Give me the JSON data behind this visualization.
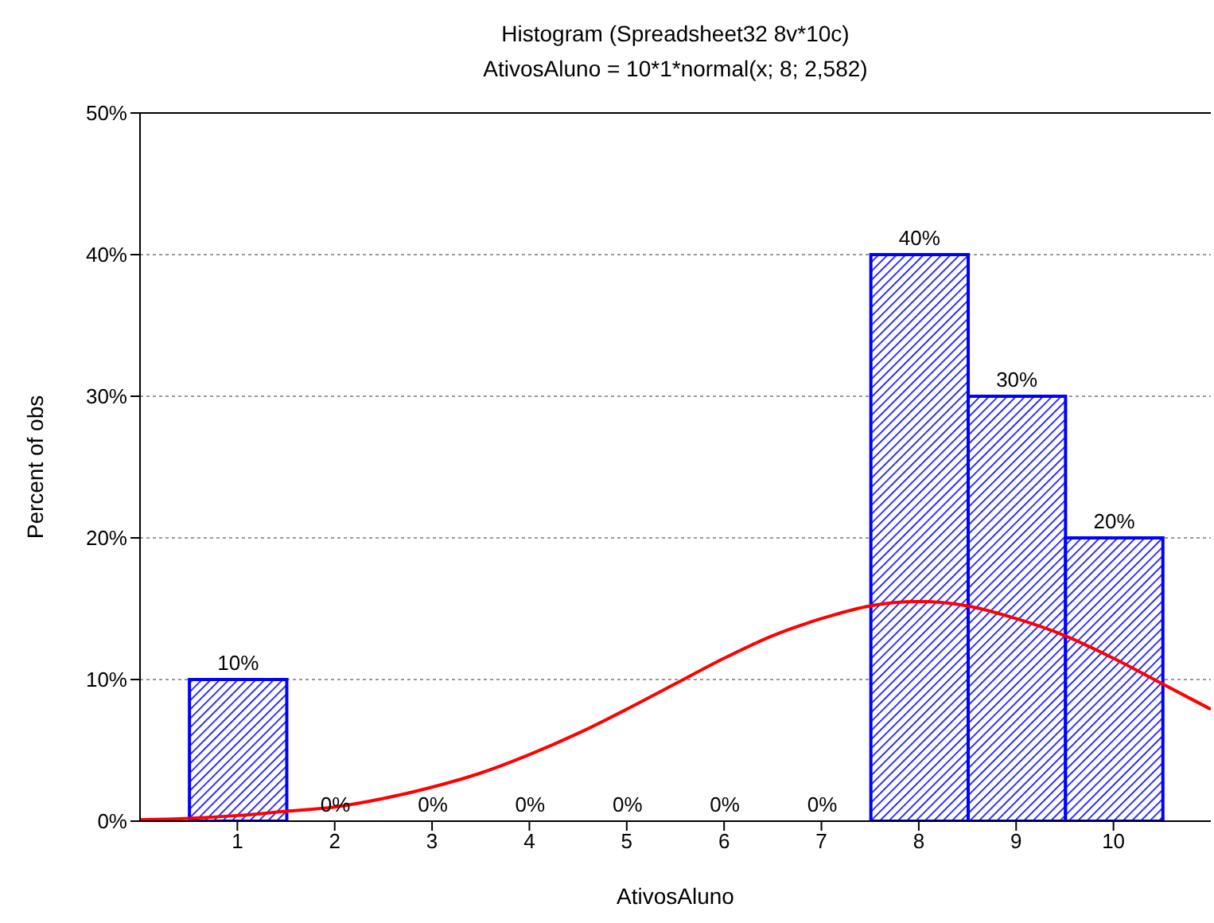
{
  "chart_data": {
    "type": "histogram",
    "title": "Histogram (Spreadsheet32 8v*10c)",
    "subtitle": "AtivosAluno = 10*1*normal(x; 8; 2,582)",
    "xlabel": "AtivosAluno",
    "ylabel": "Percent of obs",
    "bins": [
      0.5,
      1.5,
      2.5,
      3.5,
      4.5,
      5.5,
      6.5,
      7.5,
      8.5,
      9.5,
      10.5
    ],
    "values": [
      10,
      0,
      0,
      0,
      0,
      0,
      0,
      40,
      30,
      20
    ],
    "value_labels": [
      "10%",
      "0%",
      "0%",
      "0%",
      "0%",
      "0%",
      "0%",
      "40%",
      "30%",
      "20%"
    ],
    "color": "#0000ff",
    "series": [
      {
        "type": "line",
        "color": "#ff0000",
        "x": [
          0,
          0.5,
          1,
          1.5,
          2,
          2.5,
          3,
          3.5,
          4,
          4.5,
          5,
          5.5,
          6,
          6.5,
          7,
          7.5,
          8,
          8.5,
          9,
          9.5,
          10,
          10.5,
          11
        ],
        "values": [
          0.1,
          0.2,
          0.4,
          0.7,
          1,
          1.6,
          2.4,
          3.4,
          4.7,
          6.2,
          7.9,
          9.7,
          11.5,
          13.1,
          14.3,
          15.2,
          15.5,
          15.2,
          14.3,
          13.1,
          11.5,
          9.7,
          7.9
        ]
      }
    ],
    "xlim": [
      0,
      11
    ],
    "xticks": [
      1,
      2,
      3,
      4,
      5,
      6,
      7,
      8,
      9,
      10
    ],
    "ylim": [
      0,
      50
    ],
    "yticks": [
      {
        "value": 0,
        "label": "0%"
      },
      {
        "value": 10,
        "label": "10%"
      },
      {
        "value": 20,
        "label": "20%"
      },
      {
        "value": 30,
        "label": "30%"
      },
      {
        "value": 40,
        "label": "40%"
      },
      {
        "value": 50,
        "label": "50%"
      }
    ],
    "grid": "y"
  }
}
